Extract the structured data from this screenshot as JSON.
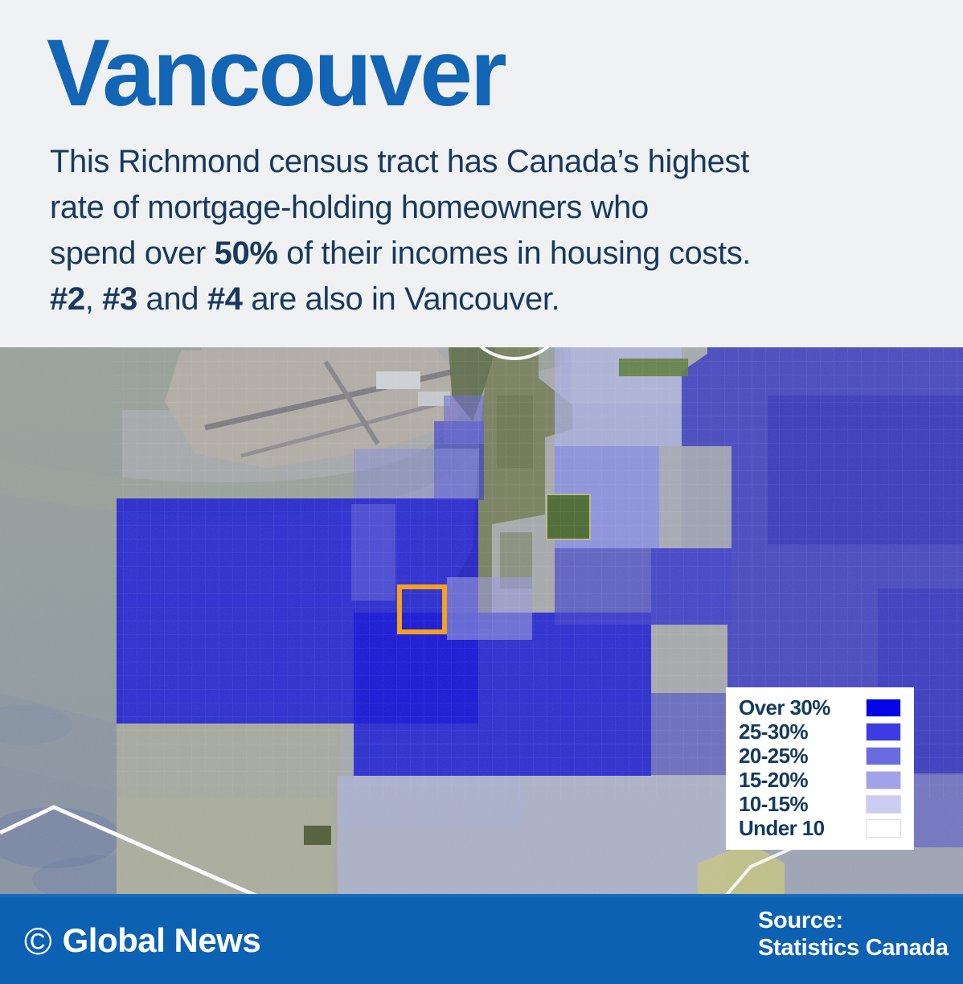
{
  "theme": {
    "page-bg": "#f0f1f3",
    "title-blue": "#1264b4",
    "text-navy": "#18395e",
    "legend-navy": "#143a5e",
    "footer-blue": "#0c61b3",
    "accent-orange": "#f5a01e"
  },
  "header": {
    "title": "Vancouver",
    "description_lines": [
      [
        {
          "t": "This Richmond census tract has Canada’s highest"
        }
      ],
      [
        {
          "t": "rate of mortgage-holding homeowners who"
        }
      ],
      [
        {
          "t": "spend over "
        },
        {
          "t": "50%",
          "b": true
        },
        {
          "t": " of their incomes in housing costs."
        }
      ],
      [
        {
          "t": "#2",
          "b": true
        },
        {
          "t": ", "
        },
        {
          "t": "#3",
          "b": true
        },
        {
          "t": " and "
        },
        {
          "t": "#4",
          "b": true
        },
        {
          "t": " are also in Vancouver."
        }
      ]
    ]
  },
  "map": {
    "highlight": {
      "border_color": "#f5a01e"
    },
    "legend": {
      "items": [
        {
          "label": "Over 30%",
          "color": "#0505e8"
        },
        {
          "label": "25-30%",
          "color": "#3c3ce2"
        },
        {
          "label": "20-25%",
          "color": "#6b6be0"
        },
        {
          "label": "15-20%",
          "color": "#a2a2e9"
        },
        {
          "label": "10-15%",
          "color": "#cdcdf3"
        },
        {
          "label": "Under 10",
          "color": "#ffffff"
        }
      ]
    }
  },
  "footer": {
    "copyright_symbol": "©",
    "credit": "Global News",
    "source_label": "Source:",
    "source_name": "Statistics Canada"
  }
}
